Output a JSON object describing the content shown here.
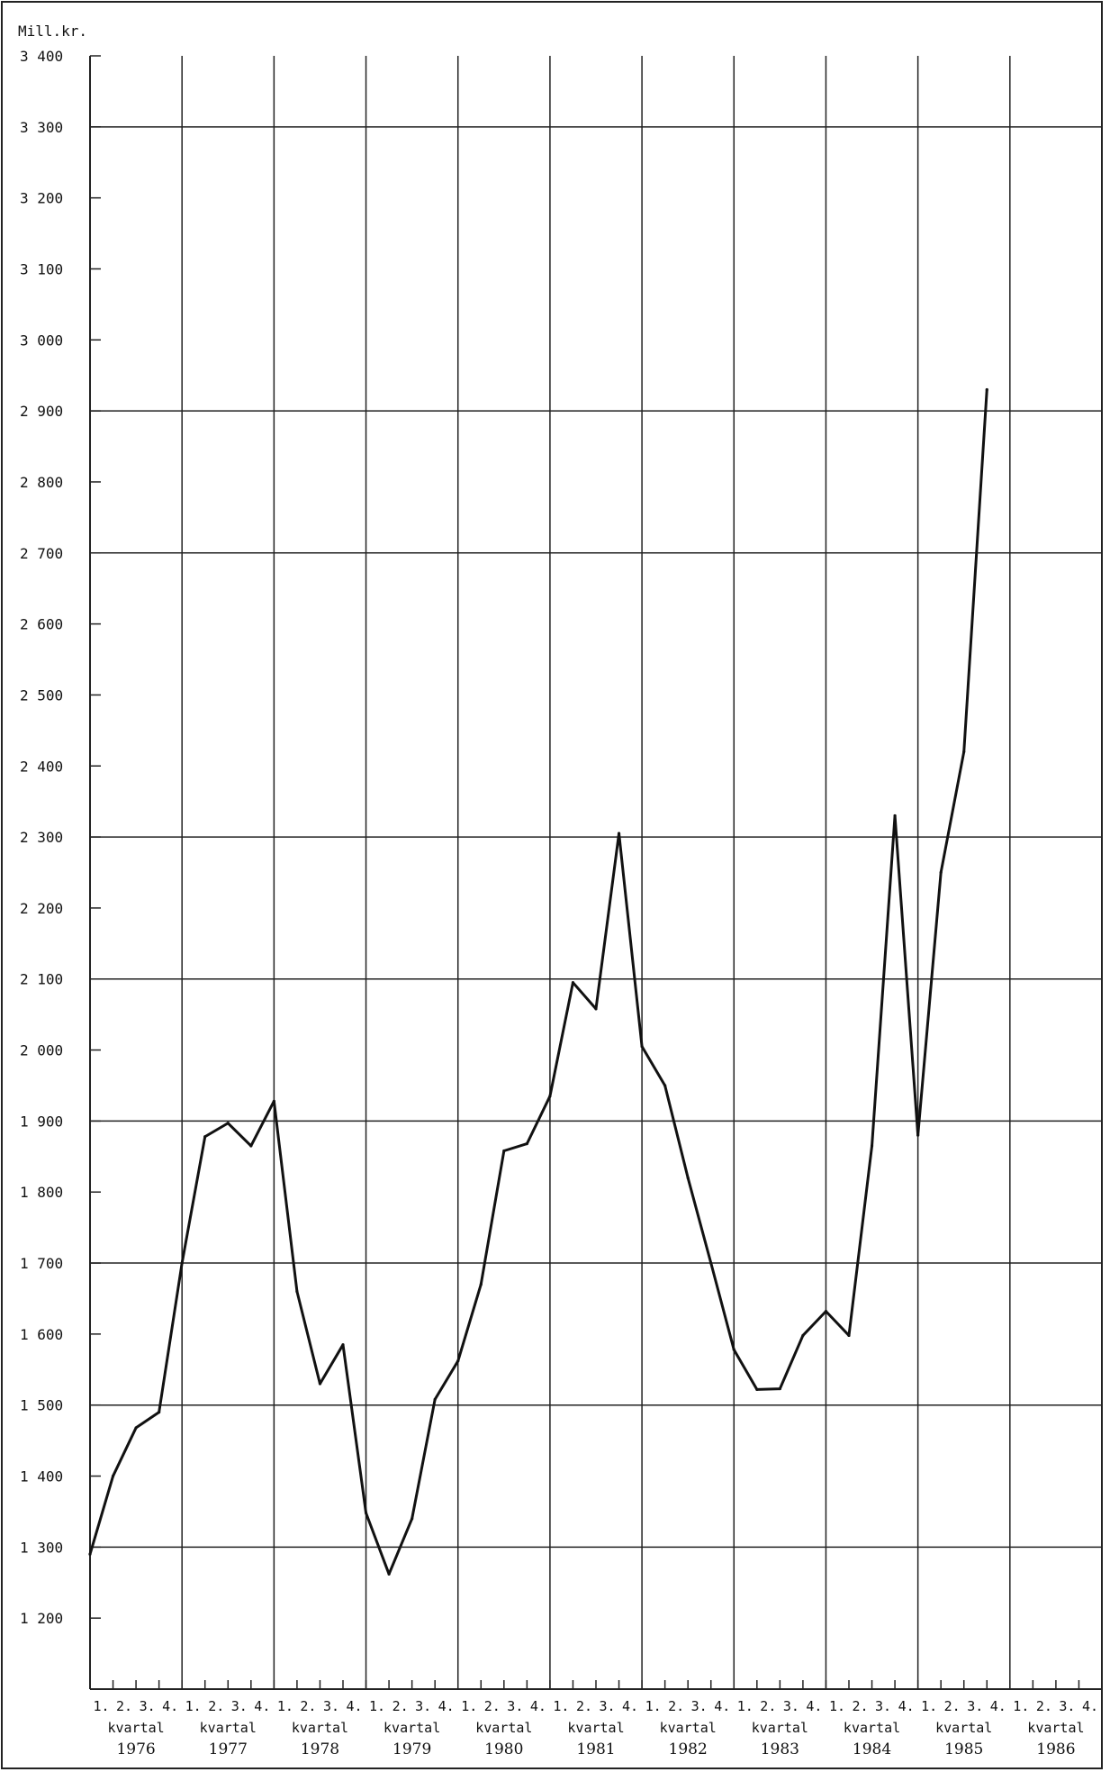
{
  "chart_data": {
    "type": "line",
    "title": "",
    "ylabel": "Mill.kr.",
    "xlabel": "",
    "ylim": [
      1100,
      3400
    ],
    "yticks": [
      1200,
      1300,
      1400,
      1500,
      1600,
      1700,
      1800,
      1900,
      2000,
      2100,
      2200,
      2300,
      2400,
      2500,
      2600,
      2700,
      2800,
      2900,
      3000,
      3100,
      3200,
      3300,
      3400
    ],
    "ytick_labels": [
      "1 200",
      "1 300",
      "1 400",
      "1 500",
      "1 600",
      "1 700",
      "1 800",
      "1 900",
      "2 000",
      "2 100",
      "2 200",
      "2 300",
      "2 400",
      "2 500",
      "2 600",
      "2 700",
      "2 800",
      "2 900",
      "3 000",
      "3 100",
      "3 200",
      "3 300",
      "3 400"
    ],
    "gridlines": [
      1300,
      1500,
      1700,
      1900,
      2100,
      2300,
      2700,
      2900,
      3300
    ],
    "quarter_labels": [
      "1.",
      "2.",
      "3.",
      "4."
    ],
    "period_label": "kvartal",
    "years": [
      "1976",
      "1977",
      "1978",
      "1979",
      "1980",
      "1981",
      "1982",
      "1983",
      "1984",
      "1985",
      "1986"
    ],
    "grid": true,
    "series": [
      {
        "values": [
          1290,
          1400,
          1468,
          1490,
          1700,
          1878,
          1897,
          1865,
          1928,
          1660,
          1530,
          1585,
          1348,
          1262,
          1340,
          1508,
          1562,
          1670,
          1858,
          1868,
          1935,
          2095,
          2058,
          2305,
          2005,
          1950,
          1820,
          1700,
          1578,
          1522,
          1523,
          1598,
          1632,
          1598,
          1865,
          2330,
          1880,
          2250,
          2420,
          2930
        ]
      }
    ]
  }
}
